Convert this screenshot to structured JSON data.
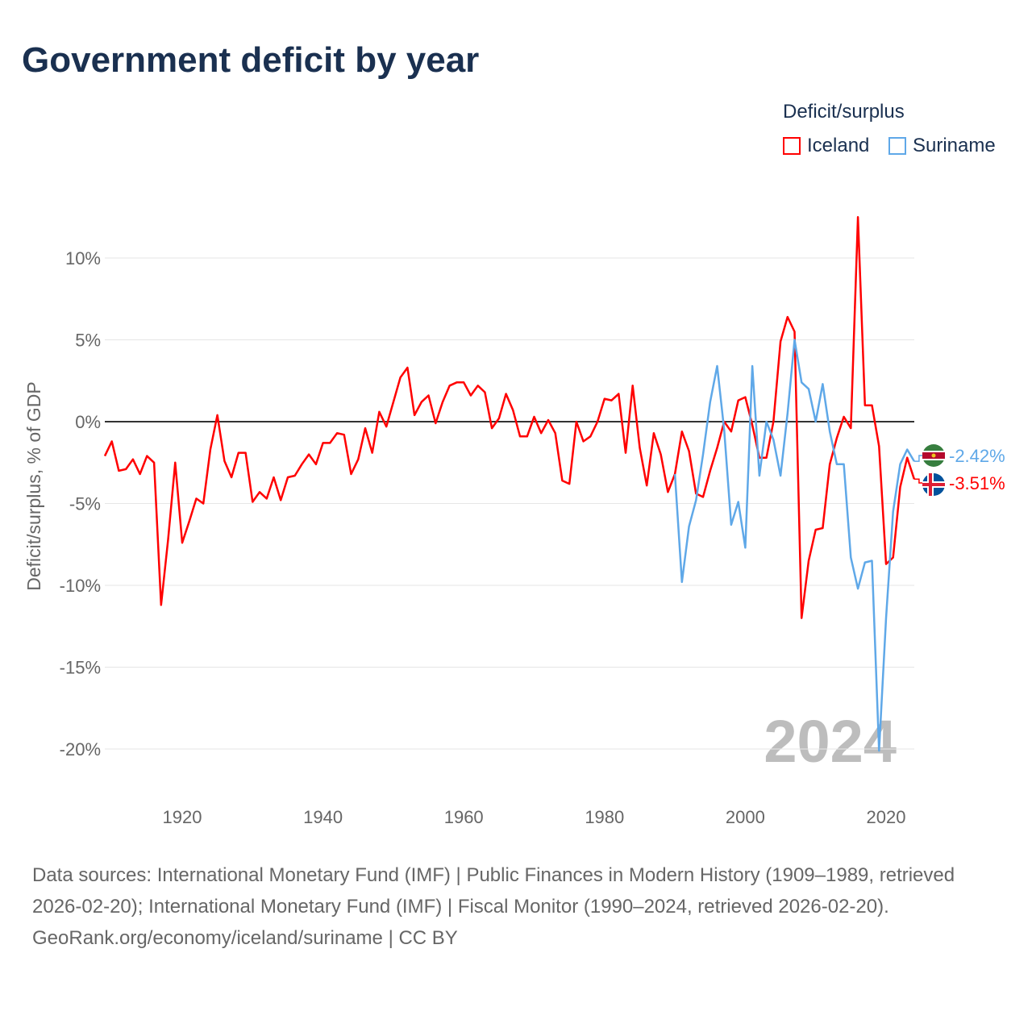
{
  "title": "Government deficit by year",
  "legend": {
    "title": "Deficit/surplus",
    "items": [
      {
        "name": "Iceland",
        "color": "#ff0000"
      },
      {
        "name": "Suriname",
        "color": "#5fa8e8"
      }
    ]
  },
  "year_watermark": "2024",
  "footer": {
    "sources": "Data sources: International Monetary Fund (IMF) | Public Finances in Modern History (1909–1989, retrieved 2026-02-20); International Monetary Fund (IMF) | Fiscal Monitor (1990–2024, retrieved 2026-02-20).",
    "credit": "GeoRank.org/economy/iceland/suriname | CC BY"
  },
  "chart_data": {
    "type": "line",
    "title": "Government deficit by year",
    "xlabel": "",
    "ylabel": "Deficit/surplus, % of GDP",
    "xlim": [
      1909,
      2024
    ],
    "ylim": [
      -20,
      12.5
    ],
    "x_ticks": [
      1920,
      1940,
      1960,
      1980,
      2000,
      2020
    ],
    "y_ticks": [
      {
        "v": 10,
        "label": "10%"
      },
      {
        "v": 5,
        "label": "5%"
      },
      {
        "v": 0,
        "label": "0%"
      },
      {
        "v": -5,
        "label": "-5%"
      },
      {
        "v": -10,
        "label": "-10%"
      },
      {
        "v": -15,
        "label": "-15%"
      },
      {
        "v": -20,
        "label": "-20%"
      }
    ],
    "series": [
      {
        "name": "Iceland",
        "color": "#ff0000",
        "start_year": 1909,
        "end_label": "-3.51%",
        "values": [
          -2.1,
          -1.2,
          -3.0,
          -2.9,
          -2.3,
          -3.2,
          -2.1,
          -2.5,
          -11.2,
          -7.2,
          -2.5,
          -7.4,
          -6.1,
          -4.7,
          -5.0,
          -1.7,
          0.4,
          -2.4,
          -3.4,
          -1.9,
          -1.9,
          -4.9,
          -4.3,
          -4.7,
          -3.4,
          -4.8,
          -3.4,
          -3.3,
          -2.6,
          -2.0,
          -2.6,
          -1.3,
          -1.3,
          -0.7,
          -0.8,
          -3.2,
          -2.3,
          -0.4,
          -1.9,
          0.6,
          -0.3,
          1.2,
          2.7,
          3.3,
          0.4,
          1.2,
          1.6,
          -0.1,
          1.2,
          2.2,
          2.4,
          2.4,
          1.6,
          2.2,
          1.8,
          -0.4,
          0.2,
          1.7,
          0.7,
          -0.9,
          -0.9,
          0.3,
          -0.7,
          0.1,
          -0.7,
          -3.6,
          -3.8,
          0.0,
          -1.2,
          -0.9,
          0.0,
          1.4,
          1.3,
          1.7,
          -1.9,
          2.2,
          -1.6,
          -3.9,
          -0.7,
          -2.0,
          -4.3,
          -3.2,
          -0.6,
          -1.8,
          -4.4,
          -4.6,
          -3.0,
          -1.6,
          0.0,
          -0.6,
          1.3,
          1.5,
          -0.2,
          -2.2,
          -2.2,
          0.0,
          4.9,
          6.4,
          5.5,
          -12.0,
          -8.5,
          -6.6,
          -6.5,
          -2.6,
          -1.0,
          0.3,
          -0.4,
          12.5,
          1.0,
          1.0,
          -1.5,
          -8.7,
          -8.3,
          -4.0,
          -2.2,
          -3.51
        ]
      },
      {
        "name": "Suriname",
        "color": "#5fa8e8",
        "start_year": 1990,
        "end_label": "-2.42%",
        "values": [
          -3.2,
          -9.8,
          -6.4,
          -4.8,
          -2.0,
          1.2,
          3.4,
          -0.5,
          -6.3,
          -4.9,
          -7.7,
          3.4,
          -3.3,
          0.0,
          -1.1,
          -3.3,
          0.5,
          5.0,
          2.4,
          2.0,
          0.0,
          2.3,
          -0.6,
          -2.6,
          -2.6,
          -8.3,
          -10.2,
          -8.6,
          -8.5,
          -20.1,
          -12.0,
          -5.5,
          -2.6,
          -1.7,
          -2.42
        ]
      }
    ]
  }
}
